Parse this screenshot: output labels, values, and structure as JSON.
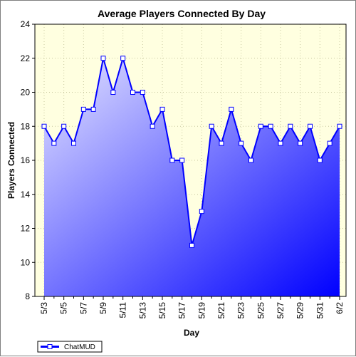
{
  "chart_data": {
    "type": "area",
    "title": "Average Players Connected By Day",
    "xlabel": "Day",
    "ylabel": "Players Connected",
    "ylim": [
      8,
      24
    ],
    "y_ticks": [
      8,
      10,
      12,
      14,
      16,
      18,
      20,
      22,
      24
    ],
    "x_tick_labels": [
      "5/3",
      "5/5",
      "5/7",
      "5/9",
      "5/11",
      "5/13",
      "5/15",
      "5/17",
      "5/19",
      "5/21",
      "5/23",
      "5/25",
      "5/27",
      "5/29",
      "5/31",
      "6/2"
    ],
    "categories": [
      "5/3",
      "5/4",
      "5/5",
      "5/6",
      "5/7",
      "5/8",
      "5/9",
      "5/10",
      "5/11",
      "5/12",
      "5/13",
      "5/14",
      "5/15",
      "5/16",
      "5/17",
      "5/18",
      "5/19",
      "5/20",
      "5/21",
      "5/22",
      "5/23",
      "5/24",
      "5/25",
      "5/26",
      "5/27",
      "5/28",
      "5/29",
      "5/30",
      "5/31",
      "6/1",
      "6/2"
    ],
    "grid": true,
    "legend_position": "bottom-left",
    "series": [
      {
        "name": "ChatMUD",
        "color": "#0000ff",
        "values": [
          18,
          17,
          18,
          17,
          19,
          19,
          22,
          20,
          22,
          20,
          20,
          18,
          19,
          16,
          16,
          11,
          13,
          18,
          17,
          19,
          17,
          16,
          18,
          18,
          17,
          18,
          17,
          18,
          16,
          17,
          18
        ]
      }
    ],
    "plot_background": "#ffffe0",
    "fill_gradient": [
      "#e6e6ff",
      "#0000ff"
    ]
  }
}
